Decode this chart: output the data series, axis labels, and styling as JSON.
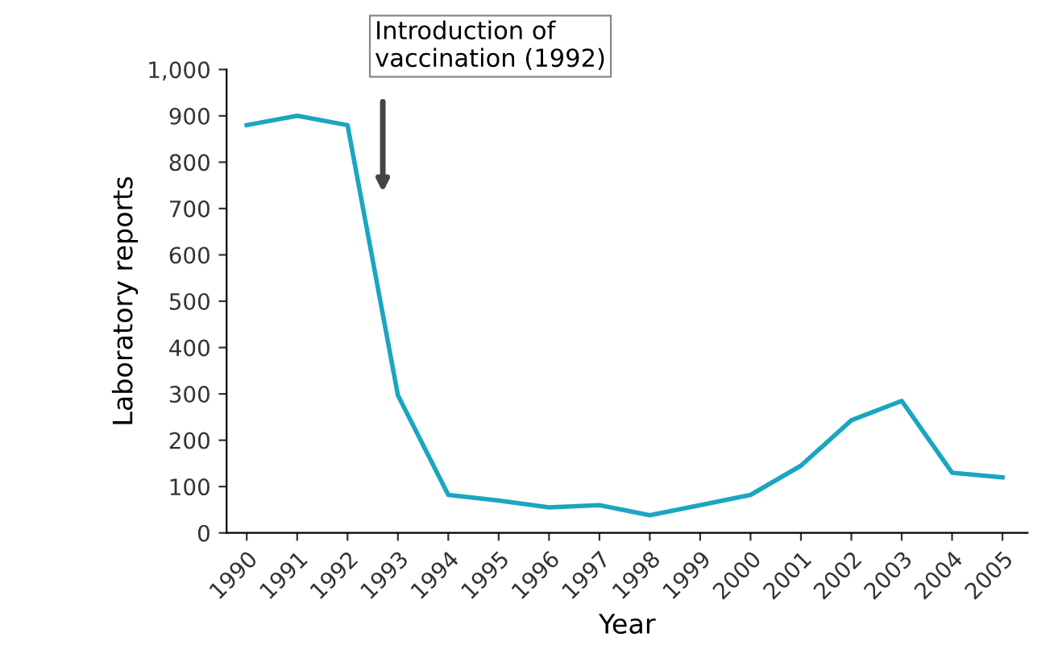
{
  "chart_data": {
    "type": "line",
    "xlabel": "Year",
    "ylabel": "Laboratory reports",
    "x": [
      1990,
      1991,
      1992,
      1993,
      1994,
      1995,
      1996,
      1997,
      1998,
      1999,
      2000,
      2001,
      2002,
      2003,
      2004,
      2005
    ],
    "series": [
      {
        "color": "#1aa6c0",
        "values": [
          880,
          900,
          880,
          297,
          82,
          70,
          55,
          60,
          38,
          60,
          82,
          145,
          243,
          285,
          130,
          120
        ]
      }
    ],
    "xlim": [
      1989.6,
      2005.5
    ],
    "ylim": [
      0,
      1000
    ],
    "xticks": [
      1990,
      1991,
      1992,
      1993,
      1994,
      1995,
      1996,
      1997,
      1998,
      1999,
      2000,
      2001,
      2002,
      2003,
      2004,
      2005
    ],
    "yticks": [
      0,
      100,
      200,
      300,
      400,
      500,
      600,
      700,
      800,
      900,
      {
        "value": 1000,
        "label": "1,000"
      }
    ],
    "annotations": [
      "Introduction of\nvaccination (1992)"
    ],
    "grid": false,
    "legend": false,
    "marker": "none",
    "line_style": "solid"
  }
}
